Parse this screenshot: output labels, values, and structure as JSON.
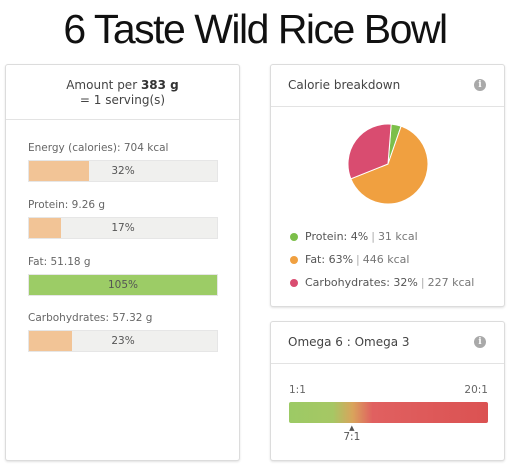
{
  "page": {
    "title": "6 Taste Wild Rice Bowl"
  },
  "nutrition": {
    "amount_prefix": "Amount per ",
    "amount_value": "383 g",
    "serving_line": "= 1 serving(s)",
    "nutrients": [
      {
        "label": "Energy (calories): 704 kcal",
        "percent_label": "32%",
        "percent": 32,
        "color": "#f2c496"
      },
      {
        "label": "Protein: 9.26 g",
        "percent_label": "17%",
        "percent": 17,
        "color": "#f2c496"
      },
      {
        "label": "Fat: 51.18 g",
        "percent_label": "105%",
        "percent": 105,
        "color": "#9ccc66"
      },
      {
        "label": "Carbohydrates: 57.32 g",
        "percent_label": "23%",
        "percent": 23,
        "color": "#f2c496"
      }
    ]
  },
  "calorie_breakdown": {
    "header": "Calorie breakdown",
    "info_icon": "info-icon",
    "legend": [
      {
        "label": "Protein: 4%",
        "kcal": "31 kcal",
        "color": "#7cbf4a"
      },
      {
        "label": "Fat: 63%",
        "kcal": "446 kcal",
        "color": "#f0a040"
      },
      {
        "label": "Carbohydrates: 32%",
        "kcal": "227 kcal",
        "color": "#d94c70"
      }
    ],
    "chart_data": {
      "type": "pie",
      "categories": [
        "Protein",
        "Fat",
        "Carbohydrates"
      ],
      "values": [
        4,
        63,
        32
      ],
      "colors": [
        "#7cbf4a",
        "#f0a040",
        "#d94c70"
      ]
    }
  },
  "omega": {
    "header": "Omega 6 : Omega 3",
    "info_icon": "info-icon",
    "scale_min_label": "1:1",
    "scale_max_label": "20:1",
    "marker_label": "7:1",
    "marker_value": 7,
    "scale_min": 1,
    "scale_max": 20
  }
}
